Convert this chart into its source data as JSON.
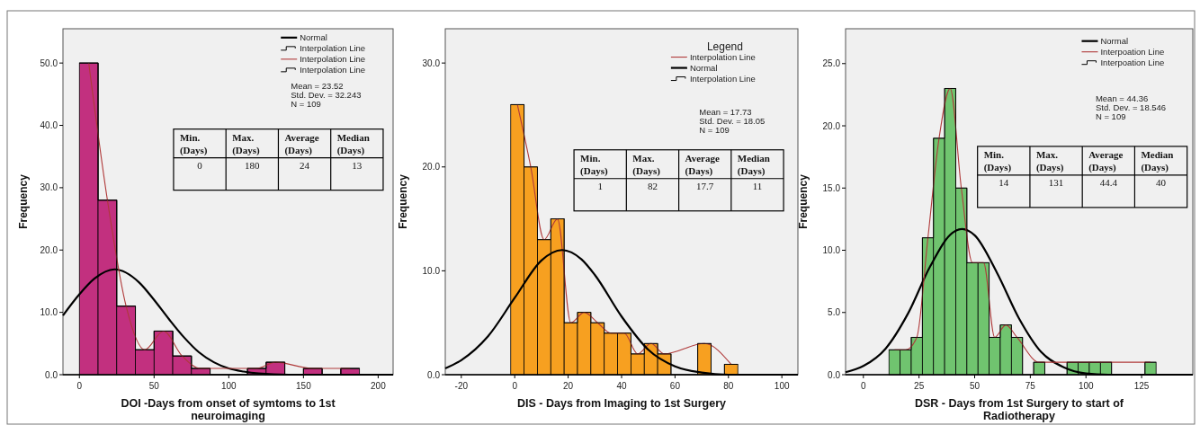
{
  "chart_data": [
    {
      "type": "histogram",
      "xlabel": "DOI -Days from onset of symtoms to 1st neuroimaging",
      "ylabel": "Frequency",
      "color": "#c2307f",
      "bins": [
        0,
        12.5,
        25,
        37.5,
        50,
        62.5,
        75,
        87.5,
        100,
        112.5,
        125,
        137.5,
        150,
        162.5,
        175,
        187.5
      ],
      "values": [
        50,
        28,
        11,
        4,
        7,
        3,
        1,
        0,
        0,
        1,
        2,
        0,
        1,
        0,
        1
      ],
      "xlim": [
        -11,
        210
      ],
      "xticks": [
        0,
        50,
        100,
        150,
        200
      ],
      "ylim": [
        0,
        55.5
      ],
      "yticks": [
        {
          "value": 0,
          "label": "0.0"
        },
        {
          "value": 10,
          "label": "10.0"
        },
        {
          "value": 20,
          "label": "20.0"
        },
        {
          "value": 30,
          "label": "30.0"
        },
        {
          "value": 40,
          "label": "40.0"
        },
        {
          "value": 50,
          "label": "50.0"
        }
      ],
      "legend": "top right",
      "series": [
        {
          "name": "Normal",
          "type": "line",
          "color": "#000000",
          "x": [
            -11,
            0,
            10,
            23.5,
            40,
            50,
            60,
            70,
            80,
            90,
            100,
            110,
            120,
            140,
            160,
            210
          ],
          "values": [
            9.5,
            12.9,
            15.4,
            16.9,
            14.8,
            12.0,
            8.9,
            6.0,
            3.6,
            2.0,
            1.0,
            0.5,
            0.2,
            0,
            0,
            0
          ]
        },
        {
          "name": "Interpolation Line",
          "type": "step",
          "color": "#000000",
          "x": [
            0,
            12.5,
            25,
            37.5,
            50,
            62.5,
            75,
            87.5,
            100,
            112.5,
            125,
            137.5,
            150,
            162.5,
            175,
            187.5
          ],
          "values": [
            50,
            28,
            11,
            4,
            7,
            3,
            1,
            0,
            0,
            1,
            2,
            0,
            1,
            0,
            1,
            1
          ]
        },
        {
          "name": "Interpolation Line",
          "type": "line",
          "color": "#b03a3a",
          "x": [
            6.25,
            18.75,
            31.25,
            43.75,
            56.25,
            68.75,
            81.25,
            118.75,
            131.25,
            156.25,
            181.25
          ],
          "values": [
            50,
            28,
            11,
            4,
            7,
            3,
            1,
            1,
            2,
            1,
            1
          ]
        },
        {
          "name": "Interpolation Line",
          "type": "step",
          "color": "#000000",
          "x": [
            0,
            12.5,
            25,
            37.5,
            50,
            62.5,
            75,
            87.5,
            100,
            112.5,
            125,
            137.5,
            150,
            162.5,
            175,
            187.5
          ],
          "values": [
            50,
            28,
            11,
            4,
            7,
            3,
            1,
            0,
            0,
            1,
            2,
            0,
            1,
            0,
            1,
            1
          ]
        }
      ],
      "annotations": [
        "Mean = 23.52",
        "Std. Dev. = 32.243",
        "N = 109",
        "Min.\n(Days)",
        "Max.\n(Days)",
        "Average\n(Days)",
        "Median\n(Days)",
        "0",
        "180",
        "24",
        "13"
      ]
    },
    {
      "type": "histogram",
      "xlabel": "DIS - Days from Imaging to 1st Surgery",
      "ylabel": "Frequency",
      "color": "#f7a020",
      "bins": [
        -1.5,
        3.5,
        8.5,
        13.5,
        18.5,
        23.5,
        28.5,
        33.5,
        38.5,
        43.5,
        48.5,
        53.5,
        58.5,
        63.5,
        68.5,
        73.5,
        78.5,
        83.5
      ],
      "values": [
        26,
        20,
        13,
        15,
        5,
        6,
        5,
        4,
        4,
        2,
        3,
        2,
        0,
        0,
        3,
        0,
        1
      ],
      "xlim": [
        -26,
        106
      ],
      "xticks": [
        -20,
        0,
        20,
        40,
        60,
        80,
        100
      ],
      "ylim": [
        0,
        33.3
      ],
      "yticks": [
        {
          "value": 0,
          "label": "0.0"
        },
        {
          "value": 10,
          "label": "10.0"
        },
        {
          "value": 20,
          "label": "20.0"
        },
        {
          "value": 30,
          "label": "30.0"
        }
      ],
      "legend": "top right",
      "legend_title": "Legend",
      "series": [
        {
          "name": "Interpolation Line",
          "type": "line",
          "color": "#b03a3a",
          "x": [
            1,
            6,
            11,
            16,
            21,
            26,
            31,
            36,
            41,
            46,
            51,
            56,
            71,
            81
          ],
          "values": [
            26,
            20,
            13,
            15,
            5,
            6,
            5,
            4,
            4,
            2,
            3,
            2,
            3,
            1
          ]
        },
        {
          "name": "Normal",
          "type": "line",
          "color": "#000000",
          "x": [
            -26,
            -20,
            -10,
            0,
            10,
            17.7,
            25,
            30,
            40,
            50,
            60,
            70,
            80,
            106
          ],
          "values": [
            0.6,
            1.4,
            3.7,
            7.4,
            11.0,
            12.0,
            11.1,
            9.6,
            5.6,
            2.4,
            0.8,
            0.2,
            0,
            0
          ]
        },
        {
          "name": "Interpolation Line",
          "type": "step",
          "color": "#000000",
          "x": [
            -1.5,
            3.5,
            8.5,
            13.5,
            18.5,
            23.5,
            28.5,
            33.5,
            38.5,
            43.5,
            48.5,
            53.5,
            58.5,
            63.5,
            68.5,
            73.5,
            78.5,
            83.5
          ],
          "values": [
            26,
            20,
            13,
            15,
            5,
            6,
            5,
            4,
            4,
            2,
            3,
            2,
            0,
            0,
            3,
            0,
            1,
            1
          ]
        }
      ],
      "annotations": [
        "Mean = 17.73",
        "Std. Dev. = 18.05",
        "N = 109",
        "Min.\n(Days)",
        "Max.\n(Days)",
        "Average\n(Days)",
        "Median\n(Days)",
        "1",
        "82",
        "17.7",
        "11"
      ]
    },
    {
      "type": "histogram",
      "xlabel": "DSR - Days from 1st Surgery to start of Radiotherapy",
      "ylabel": "Frequency",
      "color": "#70c46f",
      "bins": [
        11.5,
        16.5,
        21.5,
        26.5,
        31.5,
        36.5,
        41.5,
        46.5,
        51.5,
        56.5,
        61.5,
        66.5,
        71.5,
        76.5,
        81.5,
        86.5,
        91.5,
        96.5,
        101.5,
        106.5,
        111.5,
        116.5,
        121.5,
        126.5,
        131.5
      ],
      "values": [
        2,
        2,
        3,
        11,
        19,
        23,
        15,
        9,
        9,
        3,
        4,
        3,
        0,
        1,
        0,
        0,
        1,
        1,
        1,
        1,
        0,
        0,
        0,
        1
      ],
      "xlim": [
        -8,
        148
      ],
      "xticks": [
        0,
        25,
        50,
        75,
        100,
        125
      ],
      "ylim": [
        0,
        27.8
      ],
      "yticks": [
        {
          "value": 0,
          "label": "0.0"
        },
        {
          "value": 5,
          "label": "5.0"
        },
        {
          "value": 10,
          "label": "10.0"
        },
        {
          "value": 15,
          "label": "15.0"
        },
        {
          "value": 20,
          "label": "20.0"
        },
        {
          "value": 25,
          "label": "25.0"
        }
      ],
      "legend": "top right",
      "series": [
        {
          "name": "Normal",
          "type": "line",
          "color": "#000000",
          "x": [
            -8,
            0,
            10,
            20,
            30,
            40,
            44.4,
            50,
            60,
            70,
            80,
            90,
            100,
            110,
            148
          ],
          "values": [
            0.2,
            0.7,
            2.1,
            4.9,
            8.7,
            11.4,
            11.7,
            11.2,
            8.2,
            4.5,
            1.8,
            0.6,
            0.1,
            0,
            0
          ]
        },
        {
          "name": "Interpoation Line",
          "type": "line",
          "color": "#b03a3a",
          "x": [
            14,
            19,
            24,
            29,
            34,
            39,
            44,
            49,
            54,
            59,
            64,
            69,
            79,
            94,
            99,
            104,
            109,
            129
          ],
          "values": [
            2,
            2,
            3,
            11,
            19,
            23,
            15,
            9,
            9,
            3,
            4,
            3,
            1,
            1,
            1,
            1,
            1,
            1
          ]
        },
        {
          "name": "Interpoation Line",
          "type": "step",
          "color": "#000000",
          "x": [
            11.5,
            16.5,
            21.5,
            26.5,
            31.5,
            36.5,
            41.5,
            46.5,
            51.5,
            56.5,
            61.5,
            66.5,
            71.5,
            76.5,
            81.5,
            86.5,
            91.5,
            96.5,
            101.5,
            106.5,
            111.5,
            116.5,
            121.5,
            126.5,
            131.5
          ],
          "values": [
            2,
            2,
            3,
            11,
            19,
            23,
            15,
            9,
            9,
            3,
            4,
            3,
            0,
            1,
            0,
            0,
            1,
            1,
            1,
            1,
            0,
            0,
            0,
            1,
            1
          ]
        }
      ],
      "annotations": [
        "Mean = 44.36",
        "Std. Dev. = 18.546",
        "N = 109",
        "Min.\n(Days)",
        "Max.\n(Days)",
        "Average\n(Days)",
        "Median\n(Days)",
        "14",
        "131",
        "44.4",
        "40"
      ]
    }
  ]
}
